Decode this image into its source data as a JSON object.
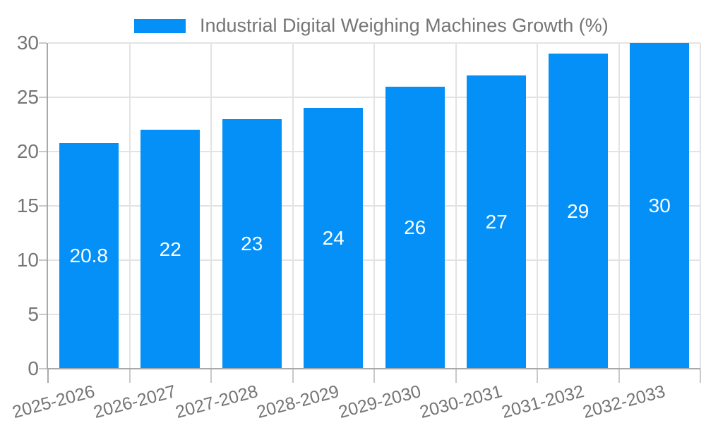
{
  "chart_data": {
    "type": "bar",
    "title": "Industrial Digital Weighing Machines Growth (%)",
    "categories": [
      "2025-2026",
      "2026-2027",
      "2027-2028",
      "2028-2029",
      "2029-2030",
      "2030-2031",
      "2031-2032",
      "2032-2033"
    ],
    "values": [
      20.8,
      22,
      23,
      24,
      26,
      27,
      29,
      30
    ],
    "xlabel": "",
    "ylabel": "",
    "ylim": [
      0,
      30
    ],
    "yticks": [
      0,
      5,
      10,
      15,
      20,
      25,
      30
    ],
    "grid": true,
    "legend_position": "top",
    "bar_color": "#0590f8",
    "bar_label_color": "#ffffff",
    "axis_text_color": "#757575",
    "gridline_color": "#e3e3e3",
    "axis_line_color": "#a9a9a9",
    "tick_color": "#c9c9c9"
  }
}
